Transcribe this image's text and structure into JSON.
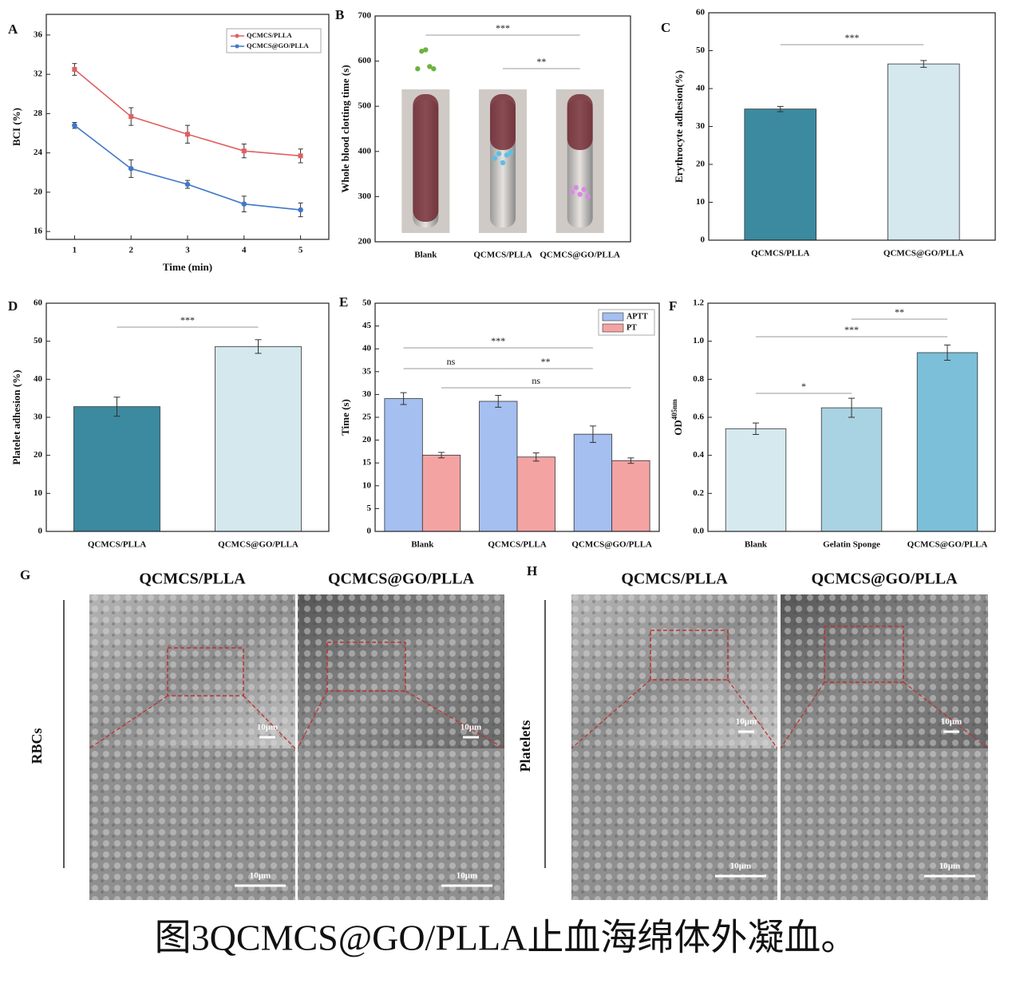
{
  "chart_data": [
    {
      "type": "line",
      "label": "A",
      "xlabel": "Time (min)",
      "ylabel": "BCI (%)",
      "x": [
        1,
        2,
        3,
        4,
        5
      ],
      "xlim": [
        0.5,
        5.5
      ],
      "xticks": [
        1,
        2,
        3,
        4,
        5
      ],
      "ylim": [
        15.2,
        38.1
      ],
      "yticks": [
        16,
        20,
        24,
        28,
        32,
        36
      ],
      "legend": "upper right",
      "series": [
        {
          "name": "QCMCS/PLLA",
          "color": "#e06060",
          "values": [
            32.5,
            27.7,
            25.9,
            24.2,
            23.7
          ],
          "errors": [
            0.6,
            0.9,
            0.9,
            0.7,
            0.7
          ]
        },
        {
          "name": "QCMCS@GO/PLLA",
          "color": "#3f78c8",
          "values": [
            26.8,
            22.4,
            20.8,
            18.8,
            18.2
          ],
          "errors": [
            0.3,
            0.9,
            0.4,
            0.8,
            0.7
          ]
        }
      ]
    },
    {
      "type": "dot",
      "label": "B",
      "ylabel": "Whole blood clotting time (s)",
      "categories": [
        "Blank",
        "QCMCS/PLLA",
        "QCMCS@GO/PLLA"
      ],
      "ylim": [
        200,
        700
      ],
      "yticks": [
        200,
        300,
        400,
        500,
        600,
        700
      ],
      "colors": [
        "#6db33f",
        "#5bc0e6",
        "#d98ae6"
      ],
      "points": [
        [
          583,
          622,
          625,
          588,
          583
        ],
        [
          385,
          395,
          375,
          392,
          398
        ],
        [
          310,
          320,
          305,
          316,
          300
        ]
      ],
      "significance": [
        {
          "pair": [
            0,
            2
          ],
          "label": "***"
        },
        {
          "pair": [
            1,
            2
          ],
          "label": "**"
        }
      ]
    },
    {
      "type": "bar",
      "label": "C",
      "ylabel": "Erythrocyte adhesion(%)",
      "categories": [
        "QCMCS/PLLA",
        "QCMCS@GO/PLLA"
      ],
      "values": [
        34.6,
        46.5
      ],
      "errors": [
        0.7,
        0.9
      ],
      "colors": [
        "#3b8aa0",
        "#d4e8ee"
      ],
      "ylim": [
        0,
        60
      ],
      "yticks": [
        0,
        10,
        20,
        30,
        40,
        50,
        60
      ],
      "significance": [
        {
          "pair": [
            0,
            1
          ],
          "label": "***"
        }
      ]
    },
    {
      "type": "bar",
      "label": "D",
      "ylabel": "Platelet adhesion (%)",
      "categories": [
        "QCMCS/PLLA",
        "QCMCS@GO/PLLA"
      ],
      "values": [
        32.8,
        48.6
      ],
      "errors": [
        2.5,
        1.8
      ],
      "colors": [
        "#3b8aa0",
        "#d4e8ee"
      ],
      "ylim": [
        0,
        60
      ],
      "yticks": [
        0,
        10,
        20,
        30,
        40,
        50,
        60
      ],
      "significance": [
        {
          "pair": [
            0,
            1
          ],
          "label": "***"
        }
      ]
    },
    {
      "type": "bar",
      "label": "E",
      "ylabel": "Time (s)",
      "categories": [
        "Blank",
        "QCMCS/PLLA",
        "QCMCS@GO/PLLA"
      ],
      "ylim": [
        0,
        50
      ],
      "yticks": [
        0,
        5,
        10,
        15,
        20,
        25,
        30,
        35,
        40,
        45,
        50
      ],
      "legend": "upper right",
      "series": [
        {
          "name": "APTT",
          "color": "#a4bff0",
          "values": [
            29.1,
            28.5,
            21.3
          ],
          "errors": [
            1.3,
            1.3,
            1.8
          ]
        },
        {
          "name": "PT",
          "color": "#f4a3a3",
          "values": [
            16.7,
            16.3,
            15.5
          ],
          "errors": [
            0.6,
            0.9,
            0.6
          ]
        }
      ],
      "significance": [
        {
          "pair": [
            0,
            2
          ],
          "series": 0,
          "label": "***"
        },
        {
          "pair": [
            0,
            1
          ],
          "series": 0,
          "label": "ns"
        },
        {
          "pair": [
            1,
            2
          ],
          "series": 0,
          "label": "**"
        },
        {
          "pair": [
            0,
            2
          ],
          "series": 1,
          "label": "ns"
        }
      ]
    },
    {
      "type": "bar",
      "label": "F",
      "ylabel": "OD",
      "ylabel_sup": "405nm",
      "categories": [
        "Blank",
        "Gelatin Sponge",
        "QCMCS@GO/PLLA"
      ],
      "values": [
        0.54,
        0.65,
        0.94
      ],
      "errors": [
        0.03,
        0.05,
        0.04
      ],
      "colors": [
        "#d6e9ef",
        "#a9d3e2",
        "#7bbfd8"
      ],
      "ylim": [
        0,
        1.2
      ],
      "yticks": [
        {
          "value": 0,
          "label": "0.0"
        },
        0.2,
        0.4,
        0.6,
        0.8,
        {
          "value": 1,
          "label": "1.0"
        },
        1.2
      ],
      "significance": [
        {
          "pair": [
            1,
            2
          ],
          "label": "**"
        },
        {
          "pair": [
            0,
            2
          ],
          "label": "***"
        },
        {
          "pair": [
            0,
            1
          ],
          "label": "*"
        }
      ]
    }
  ],
  "sem": [
    {
      "label": "G",
      "columns": [
        "QCMCS/PLLA",
        "QCMCS@GO/PLLA"
      ],
      "row_label": "RBCs",
      "scale_labels": [
        "10μm",
        "10μm",
        "10μm",
        "10μm"
      ]
    },
    {
      "label": "H",
      "columns": [
        "QCMCS/PLLA",
        "QCMCS@GO/PLLA"
      ],
      "row_label": "Platelets",
      "scale_labels": [
        "10μm",
        "10μm",
        "10μm",
        "10μm"
      ]
    }
  ],
  "caption": "图3QCMCS@GO/PLLA止血海绵体外凝血。"
}
